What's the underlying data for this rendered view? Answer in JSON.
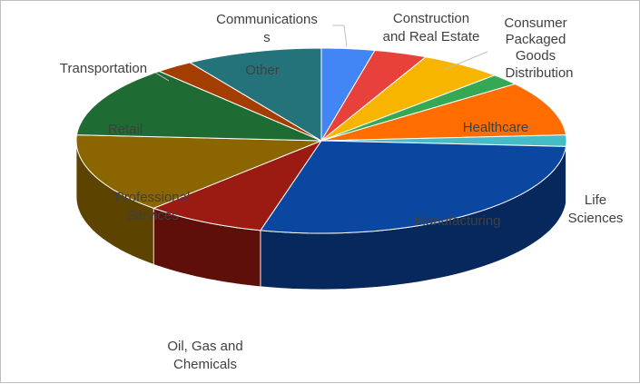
{
  "chart_data": {
    "type": "pie",
    "title": "",
    "style": "3d",
    "slices": [
      {
        "label": "Communications",
        "value": 3.5,
        "color": "#4285f4",
        "side": "#2b5db8"
      },
      {
        "label": "Construction and Real Estate",
        "value": 3.5,
        "color": "#e8403a",
        "side": "#a32a25"
      },
      {
        "label": "Consumer Packaged Goods",
        "value": 5.5,
        "color": "#f7b500",
        "side": "#b08000"
      },
      {
        "label": "Distribution",
        "value": 2.0,
        "color": "#34a853",
        "side": "#1f7a37"
      },
      {
        "label": "Healthcare",
        "value": 9.5,
        "color": "#ff6d00",
        "side": "#b54c00"
      },
      {
        "label": "Life Sciences",
        "value": 2.0,
        "color": "#46bdc6",
        "side": "#2c8a92"
      },
      {
        "label": "Manufacturing",
        "value": 28.0,
        "color": "#0b47a1",
        "side": "#07285c"
      },
      {
        "label": "Oil, Gas and Chemicals",
        "value": 8.0,
        "color": "#9b1b12",
        "side": "#5e0f0a"
      },
      {
        "label": "Professional Services",
        "value": 14.0,
        "color": "#8a6500",
        "side": "#5c4300"
      },
      {
        "label": "Retail",
        "value": 12.5,
        "color": "#1e6b34",
        "side": "#0f4420"
      },
      {
        "label": "Transportation",
        "value": 2.5,
        "color": "#a33d00",
        "side": "#6b2800"
      },
      {
        "label": "Other",
        "value": 9.0,
        "color": "#24737a",
        "side": "#164a50"
      }
    ]
  }
}
